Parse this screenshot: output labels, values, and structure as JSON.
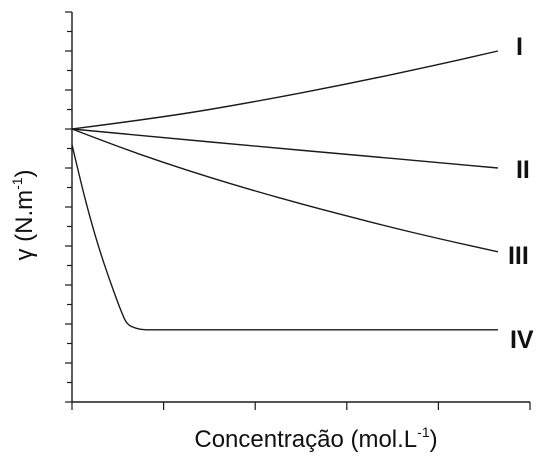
{
  "chart_data": {
    "type": "line",
    "title": "",
    "xlabel": "Concentração (mol.L",
    "xlabel_sup": "-1",
    "xlabel_close": ")",
    "ylabel": "γ (N.m",
    "ylabel_sup": "-1",
    "ylabel_close": ")",
    "xlim": [
      0,
      5
    ],
    "ylim": [
      0,
      10
    ],
    "x_ticks": [
      0,
      1,
      2,
      3,
      4,
      5
    ],
    "y_ticks": [
      0,
      0.5,
      1,
      1.5,
      2,
      2.5,
      3,
      3.5,
      4,
      4.5,
      5,
      5.5,
      6,
      6.5,
      7,
      7.5,
      8,
      8.5,
      9,
      9.5,
      10
    ],
    "tick_labels_shown": false,
    "grid": false,
    "series": [
      {
        "name": "I",
        "x": [
          0,
          1,
          2,
          3,
          4,
          4.65
        ],
        "y": [
          7,
          7.3,
          7.7,
          8.15,
          8.65,
          9
        ]
      },
      {
        "name": "II",
        "x": [
          0,
          1,
          2,
          3,
          4,
          4.65
        ],
        "y": [
          7,
          6.78,
          6.56,
          6.35,
          6.14,
          6
        ]
      },
      {
        "name": "III",
        "x": [
          0,
          0.5,
          1,
          1.5,
          2,
          2.5,
          3,
          3.5,
          4,
          4.65
        ],
        "y": [
          7,
          6.55,
          6.14,
          5.76,
          5.41,
          5.08,
          4.77,
          4.47,
          4.19,
          3.85
        ]
      },
      {
        "name": "IV",
        "x": [
          0,
          0.1,
          0.2,
          0.3,
          0.4,
          0.5,
          0.55,
          0.6,
          0.7,
          0.8,
          1,
          2,
          3,
          4,
          4.65
        ],
        "y": [
          6.6,
          5.6,
          4.7,
          3.9,
          3.2,
          2.55,
          2.25,
          1.99,
          1.88,
          1.85,
          1.85,
          1.85,
          1.85,
          1.85,
          1.85
        ]
      }
    ]
  }
}
